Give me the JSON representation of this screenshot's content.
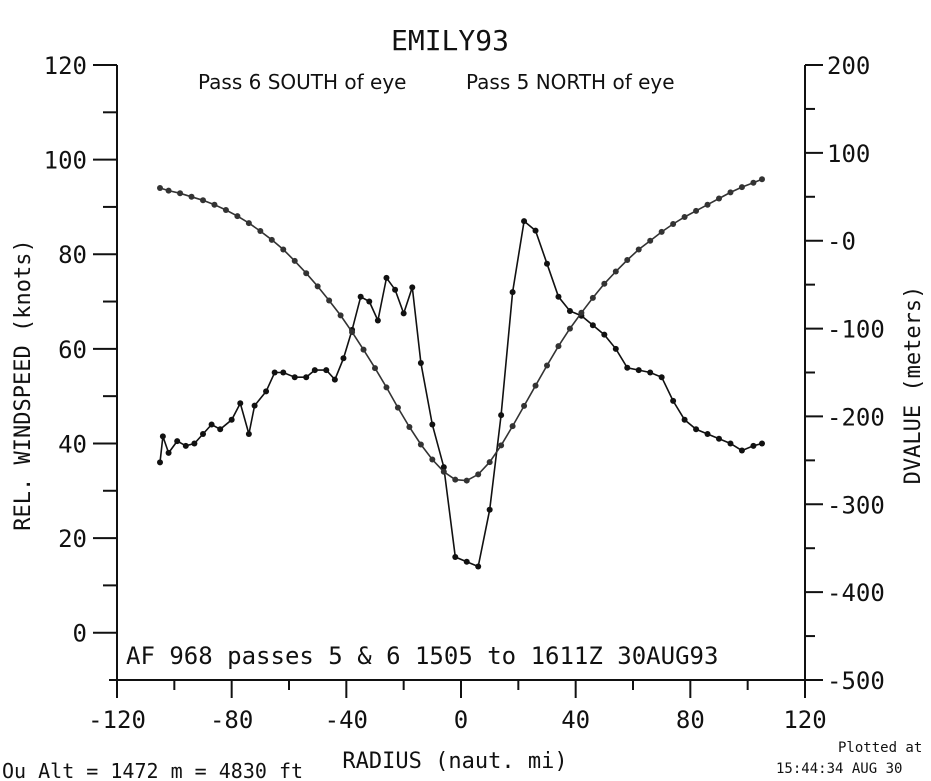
{
  "chart_data": {
    "type": "line",
    "title": "EMILY93",
    "pass_south": "Pass  6 SOUTH of eye",
    "pass_north": "Pass  5 NORTH of eye",
    "footer": "AF 968   passes  5 &  6   1505 to 1611Z 30AUG93",
    "xlabel": "RADIUS (naut. mi)",
    "ylabel": "REL. WINDSPEED (knots)",
    "y2label": "DVALUE (meters)",
    "plotted_line1": "Plotted at",
    "plotted_line2": "15:44:34 AUG 30",
    "bottom_text": "Ou  Alt = 1472 m  =  4830 ft",
    "xlim": [
      -120,
      120
    ],
    "ylim": [
      -10,
      120
    ],
    "y2lim": [
      -500,
      200
    ],
    "xticks": [
      "-120",
      "-80",
      "-40",
      "0",
      "40",
      "80",
      "120"
    ],
    "xtick_values": [
      -120,
      -80,
      -40,
      0,
      40,
      80,
      120
    ],
    "yticks": [
      "0",
      "20",
      "40",
      "60",
      "80",
      "100",
      "120"
    ],
    "ytick_values": [
      0,
      20,
      40,
      60,
      80,
      100,
      120
    ],
    "y2ticks": [
      "-500",
      "-400",
      "-300",
      "-200",
      "-100",
      "-0",
      "100",
      "200"
    ],
    "y2tick_values": [
      -500,
      -400,
      -300,
      -200,
      -100,
      0,
      100,
      200
    ],
    "grid": false,
    "series": [
      {
        "axis": "left",
        "x": [
          -105,
          -104,
          -102,
          -99,
          -96,
          -93,
          -90,
          -87,
          -84,
          -80,
          -77,
          -74,
          -72,
          -68,
          -65,
          -62,
          -58,
          -54,
          -51,
          -47,
          -44,
          -41,
          -38,
          -35,
          -32,
          -29,
          -26,
          -23,
          -20,
          -17,
          -14,
          -10,
          -6,
          -2,
          2,
          6,
          10,
          14,
          18,
          22,
          26,
          30,
          34,
          38,
          42,
          46,
          50,
          54,
          58,
          62,
          66,
          70,
          74,
          78,
          82,
          86,
          90,
          94,
          98,
          102,
          105
        ],
        "y": [
          36,
          41.5,
          38,
          40.5,
          39.5,
          40,
          42,
          44,
          43,
          45,
          48.5,
          42,
          48,
          51,
          55,
          55,
          54,
          54,
          55.5,
          55.5,
          53.5,
          58,
          64,
          71,
          70,
          66,
          75,
          72.5,
          67.5,
          73,
          57,
          44,
          35,
          16,
          15,
          14,
          26,
          46,
          72,
          87,
          85,
          78,
          71,
          68,
          67,
          65,
          63,
          60,
          56,
          55.5,
          55,
          54,
          49,
          45,
          43,
          42,
          41,
          40,
          38.5,
          39.5,
          40
        ]
      },
      {
        "axis": "right",
        "x": [
          -105,
          -102,
          -98,
          -94,
          -90,
          -86,
          -82,
          -78,
          -74,
          -70,
          -66,
          -62,
          -58,
          -54,
          -50,
          -46,
          -42,
          -38,
          -34,
          -30,
          -26,
          -22,
          -18,
          -14,
          -10,
          -6,
          -2,
          2,
          6,
          10,
          14,
          18,
          22,
          26,
          30,
          34,
          38,
          42,
          46,
          50,
          54,
          58,
          62,
          66,
          70,
          74,
          78,
          82,
          86,
          90,
          94,
          98,
          102,
          105
        ],
        "y": [
          60,
          57,
          54,
          50,
          46,
          41,
          35,
          28,
          20,
          11,
          1,
          -10,
          -23,
          -37,
          -52,
          -68,
          -85,
          -104,
          -124,
          -145,
          -167,
          -190,
          -212,
          -232,
          -249,
          -263,
          -272,
          -273,
          -266,
          -252,
          -233,
          -211,
          -188,
          -165,
          -142,
          -120,
          -100,
          -82,
          -65,
          -49,
          -35,
          -22,
          -10,
          0,
          10,
          19,
          27,
          34,
          41,
          48,
          55,
          61,
          66,
          70
        ]
      }
    ]
  }
}
